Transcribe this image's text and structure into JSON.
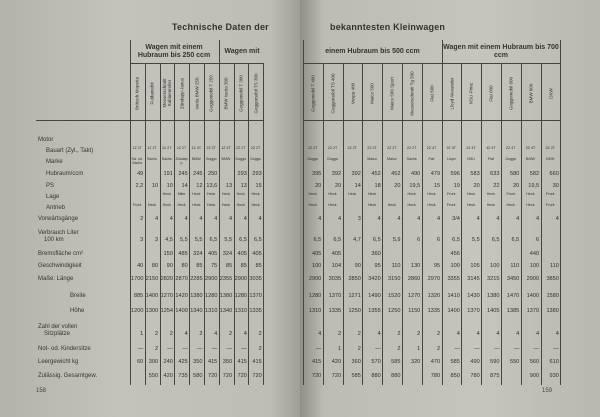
{
  "title_left": "Technische Daten der",
  "title_right": "bekanntesten Kleinwagen",
  "groups": [
    {
      "label": "Wagen mit einem Hubraum bis 250 ccm"
    },
    {
      "label": "Wagen mit"
    },
    {
      "label": "einem Hubraum bis 500 ccm"
    },
    {
      "label": "Wagen mit einem Hubraum bis 700 ccm"
    }
  ],
  "columns_left": [
    "Brütsch-Mopetta",
    "Fuldamobil",
    "Messerschmitt Kabinenroller",
    "Zündapp-Janus",
    "Isetta BMW 250",
    "Goggomobil T 250",
    "BMW Isetta 300",
    "Goggomobil T 300",
    "Goggomobil TS 300"
  ],
  "columns_right": [
    "Goggomobil T 400",
    "Goggomobil TS 400",
    "Vespa 400",
    "Maico 500",
    "Maico 500 Sport",
    "Messerschmitt Tg 500",
    "Fiat 500",
    "Lloyd Alexander",
    "NSU-Prinz",
    "Fiat 600",
    "Goggomobil 600",
    "BMW 600",
    "DKW"
  ],
  "rows": [
    {
      "label": "Motor",
      "left": [],
      "right": []
    },
    {
      "label": "Bauart (Zyl., Takt)",
      "small": true,
      "left": [
        "1Z 2T",
        "1Z 2T",
        "1Z 2T",
        "1Z 2T",
        "1Z 4T",
        "2Z 2T",
        "1Z 4T",
        "2Z 2T",
        "2Z 2T"
      ],
      "right": [
        "2Z 2T",
        "2Z 2T",
        "2Z 2T",
        "2Z 2T",
        "2Z 2T",
        "2Z 2T",
        "2Z 4T",
        "2Z 4T",
        "2Z 4T",
        "4Z 4T",
        "2Z 4T",
        "2Z 4T",
        "3Z 2T"
      ]
    },
    {
      "label": "Marke",
      "small": true,
      "left": [
        "Sa. od. Sachs",
        "Sachs",
        "Sachs",
        "Zündapp",
        "BMW",
        "Goggo",
        "BMW",
        "Goggo",
        "Goggo"
      ],
      "right": [
        "Goggo",
        "Goggo",
        "",
        "Maico",
        "Maico",
        "Sachs",
        "Fiat",
        "Lloyd",
        "NSU",
        "Fiat",
        "Goggo",
        "BMW",
        "DKW"
      ]
    },
    {
      "label": "Hubraum/ccm",
      "left": [
        "49",
        "",
        "191",
        "245",
        "245",
        "250",
        "",
        "293",
        "293"
      ],
      "right": [
        "395",
        "392",
        "392",
        "452",
        "452",
        "490",
        "479",
        "596",
        "583",
        "633",
        "580",
        "582",
        "660"
      ]
    },
    {
      "label": "PS",
      "left": [
        "2,2",
        "10",
        "10",
        "14",
        "12",
        "13,6",
        "13",
        "13",
        "15"
      ],
      "right": [
        "20",
        "20",
        "14",
        "18",
        "20",
        "19,5",
        "15",
        "19",
        "20",
        "22",
        "20",
        "19,5",
        "30"
      ]
    },
    {
      "label": "Lage",
      "small": true,
      "left": [
        "",
        "",
        "Heck",
        "Mitte",
        "Heck",
        "Heck",
        "Heck",
        "Heck",
        "Heck"
      ],
      "right": [
        "Heck",
        "Heck",
        "Heck",
        "Heck",
        "",
        "Heck",
        "Heck",
        "Front",
        "Heck",
        "Heck",
        "Front",
        "Heck",
        "Front"
      ]
    },
    {
      "label": "Antrieb",
      "small": true,
      "left": [
        "Front",
        "Heck",
        "Heck",
        "Heck",
        "Heck",
        "Heck",
        "Heck",
        "Heck",
        "Heck"
      ],
      "right": [
        "Heck",
        "Heck",
        "",
        "Heck",
        "Heck",
        "Heck",
        "Heck",
        "Front",
        "Heck",
        "Heck",
        "Heck",
        "Heck",
        "Front"
      ]
    },
    {
      "label": "Vorwärtsgänge",
      "left": [
        "2",
        "4",
        "4",
        "4",
        "4",
        "4",
        "4",
        "4",
        "4"
      ],
      "right": [
        "4",
        "4",
        "3",
        "4",
        "4",
        "4",
        "4",
        "3/4",
        "4",
        "4",
        "4",
        "4",
        "4"
      ]
    },
    {
      "label": "Verbrauch Liter\n100 km",
      "left": [
        "3",
        "3",
        "4,5",
        "5,5",
        "5,5",
        "6,5",
        "5,5",
        "6,5",
        "6,5"
      ],
      "right": [
        "6,5",
        "6,5",
        "4,7",
        "6,5",
        "5,9",
        "6",
        "6",
        "6,5",
        "5,5",
        "6,5",
        "6,5",
        "6",
        ""
      ]
    },
    {
      "label": "Bremsfläche cm²",
      "left": [
        "",
        "",
        "150",
        "485",
        "324",
        "405",
        "324",
        "405",
        "405"
      ],
      "right": [
        "405",
        "405",
        "",
        "360",
        "",
        "",
        "",
        "456",
        "",
        "",
        "",
        "440",
        ""
      ]
    },
    {
      "label": "Geschwindigkeit",
      "left": [
        "40",
        "80",
        "90",
        "80",
        "85",
        "75",
        "85",
        "85",
        "85"
      ],
      "right": [
        "100",
        "104",
        "90",
        "95",
        "110",
        "130",
        "95",
        "100",
        "105",
        "100",
        "110",
        "100",
        "110"
      ]
    },
    {
      "label": "Maße: Länge",
      "left": [
        "1700",
        "2150",
        "2820",
        "2870",
        "2285",
        "2900",
        "2355",
        "2900",
        "3035"
      ],
      "right": [
        "2900",
        "3035",
        "2850",
        "3420",
        "3150",
        "2860",
        "2970",
        "3355",
        "3145",
        "3215",
        "3450",
        "2900",
        "3850"
      ]
    },
    {
      "label": "Breite",
      "indent": true,
      "left": [
        "885",
        "1400",
        "1270",
        "1420",
        "1380",
        "1280",
        "1380",
        "1280",
        "1370"
      ],
      "right": [
        "1280",
        "1370",
        "1271",
        "1490",
        "1520",
        "1270",
        "1320",
        "1410",
        "1430",
        "1380",
        "1470",
        "1400",
        "1580"
      ]
    },
    {
      "label": "Höhe",
      "indent": true,
      "left": [
        "1200",
        "1300",
        "1254",
        "1400",
        "1340",
        "1310",
        "1340",
        "1310",
        "1335"
      ],
      "right": [
        "1310",
        "1335",
        "1250",
        "1355",
        "1250",
        "1150",
        "1335",
        "1400",
        "1370",
        "1405",
        "1385",
        "1370",
        "1380"
      ]
    },
    {
      "label": "Zahl der vollen\nSitzplätze",
      "left": [
        "1",
        "2",
        "2",
        "4",
        "2",
        "4",
        "2",
        "4",
        "2"
      ],
      "right": [
        "4",
        "2",
        "2",
        "4",
        "2",
        "2",
        "2",
        "4",
        "4",
        "4",
        "4",
        "4",
        "4"
      ]
    },
    {
      "label": "Not- od. Kindersitze",
      "left": [
        "—",
        "2",
        "—",
        "—",
        "—",
        "—",
        "—",
        "—",
        "2"
      ],
      "right": [
        "—",
        "1",
        "2",
        "—",
        "2",
        "1",
        "2",
        "—",
        "—",
        "—",
        "—",
        "—",
        "—"
      ]
    },
    {
      "label": "Leergewicht   kg",
      "left": [
        "60",
        "300",
        "240",
        "425",
        "350",
        "415",
        "350",
        "415",
        "415"
      ],
      "right": [
        "415",
        "420",
        "360",
        "570",
        "585",
        "320",
        "470",
        "585",
        "490",
        "590",
        "550",
        "560",
        "610"
      ]
    },
    {
      "label": "Zulässig. Gesamtgew.",
      "left": [
        "",
        "550",
        "420",
        "735",
        "580",
        "720",
        "720",
        "720",
        "720"
      ],
      "right": [
        "720",
        "720",
        "585",
        "880",
        "880",
        "",
        "780",
        "850",
        "780",
        "875",
        "",
        "900",
        "930"
      ]
    }
  ],
  "page_left": "158",
  "page_right": "159"
}
